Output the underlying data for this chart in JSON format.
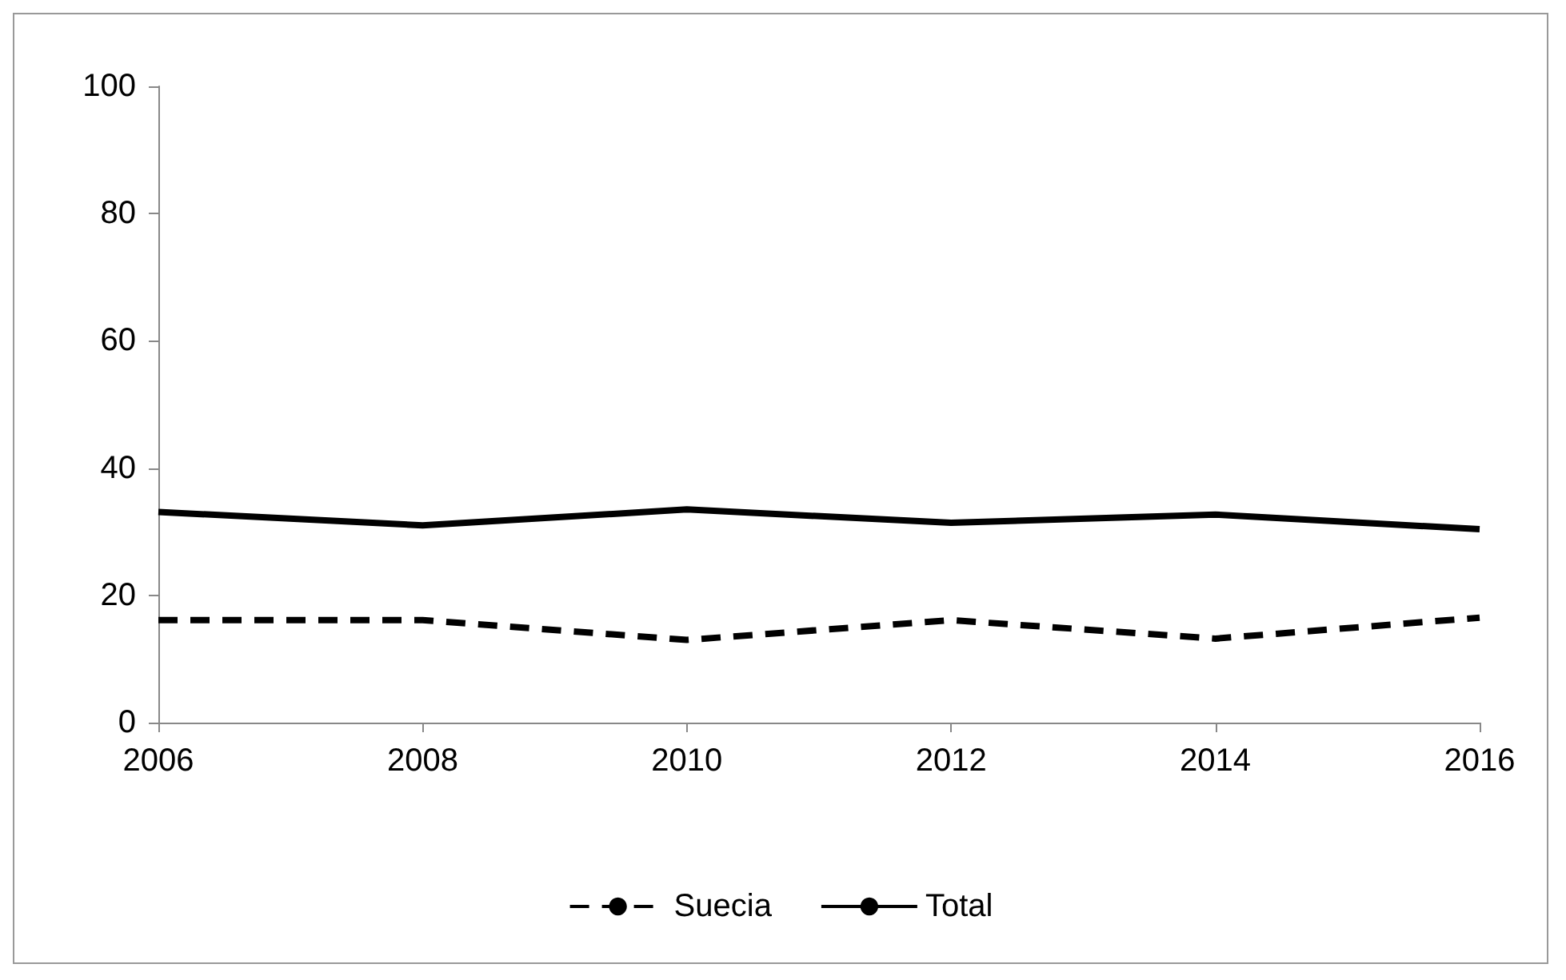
{
  "chart_data": {
    "type": "line",
    "x": [
      2006,
      2008,
      2010,
      2012,
      2014,
      2016
    ],
    "series": [
      {
        "name": "Suecia",
        "color": "#000000",
        "line_style": "dashed",
        "values": [
          16.1,
          16.1,
          13.0,
          16.1,
          13.2,
          16.5
        ]
      },
      {
        "name": "Total",
        "color": "#000000",
        "line_style": "solid",
        "values": [
          33.1,
          31.0,
          33.5,
          31.4,
          32.7,
          30.4
        ]
      }
    ],
    "xlim": [
      2006,
      2016
    ],
    "xticks": [
      2006,
      2008,
      2010,
      2012,
      2014,
      2016
    ],
    "ylim": [
      0,
      100
    ],
    "yticks": [
      0,
      20,
      40,
      60,
      80,
      100
    ],
    "grid": false,
    "legend": "bottom",
    "marker": "none"
  }
}
